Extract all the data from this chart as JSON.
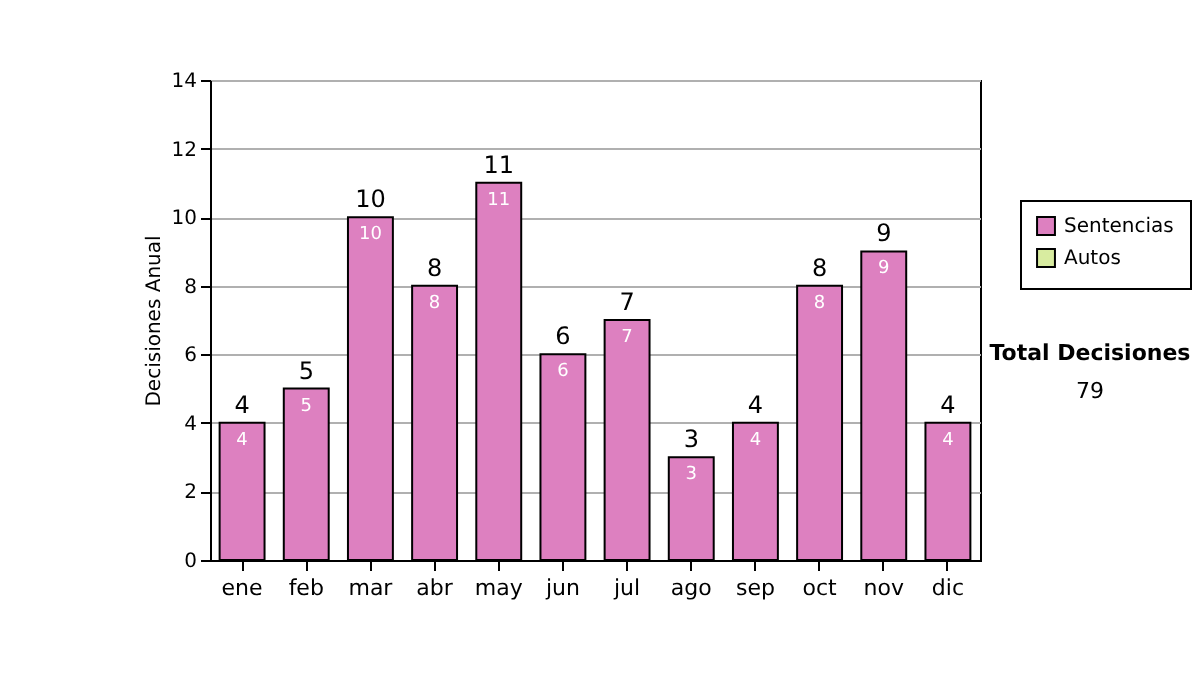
{
  "chart_data": {
    "type": "bar",
    "ylabel": "Decisiones Anual",
    "categories": [
      "ene",
      "feb",
      "mar",
      "abr",
      "may",
      "jun",
      "jul",
      "ago",
      "sep",
      "oct",
      "nov",
      "dic"
    ],
    "series": [
      {
        "name": "Sentencias",
        "color": "#dd80c0",
        "values": [
          4,
          5,
          10,
          8,
          11,
          6,
          7,
          3,
          4,
          8,
          9,
          4
        ],
        "value_labels": [
          "4",
          "5",
          "10",
          "8",
          "11",
          "6",
          "7",
          "3",
          "4",
          "8",
          "9",
          "4"
        ]
      },
      {
        "name": "Autos",
        "color": "#d8eca0",
        "values": [
          null,
          null,
          null,
          null,
          null,
          null,
          null,
          null,
          null,
          null,
          null,
          null
        ]
      }
    ],
    "stacked": true,
    "totals": [
      "4",
      "5",
      "10",
      "8",
      "11",
      "6",
      "7",
      "3",
      "4",
      "8",
      "9",
      "4"
    ],
    "ylim": [
      0,
      14
    ],
    "yticks": [
      0,
      2,
      4,
      6,
      8,
      10,
      12,
      14
    ],
    "grid": "y",
    "legend": "right",
    "annotations": [
      "Total Decisiones",
      "79"
    ]
  }
}
